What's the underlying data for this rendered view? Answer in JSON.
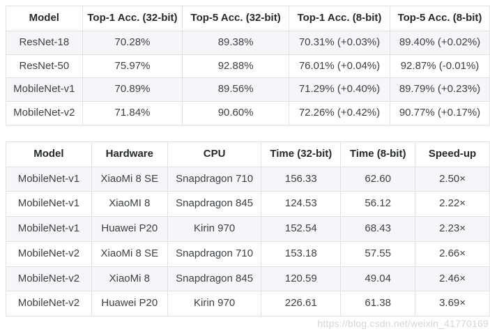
{
  "colors": {
    "stripe": "#f6f6f8",
    "border": "#dfe1e3",
    "header_text": "#26292b",
    "body_text": "#3d4144",
    "watermark_text": "#d6d6d6"
  },
  "accuracy_table": {
    "columns": [
      "Model",
      "Top-1 Acc. (32-bit)",
      "Top-5 Acc. (32-bit)",
      "Top-1 Acc. (8-bit)",
      "Top-5 Acc. (8-bit)"
    ],
    "rows": [
      [
        "ResNet-18",
        "70.28%",
        "89.38%",
        "70.31% (+0.03%)",
        "89.40% (+0.02%)"
      ],
      [
        "ResNet-50",
        "75.97%",
        "92.88%",
        "76.01% (+0.04%)",
        "92.87% (-0.01%)"
      ],
      [
        "MobileNet-v1",
        "70.89%",
        "89.56%",
        "71.29% (+0.40%)",
        "89.79% (+0.23%)"
      ],
      [
        "MobileNet-v2",
        "71.84%",
        "90.60%",
        "72.26% (+0.42%)",
        "90.77% (+0.17%)"
      ]
    ]
  },
  "latency_table": {
    "columns": [
      "Model",
      "Hardware",
      "CPU",
      "Time (32-bit)",
      "Time (8-bit)",
      "Speed-up"
    ],
    "rows": [
      [
        "MobileNet-v1",
        "XiaoMi 8 SE",
        "Snapdragon 710",
        "156.33",
        "62.60",
        "2.50×"
      ],
      [
        "MobileNet-v1",
        "XiaoMI 8",
        "Snapdragon 845",
        "124.53",
        "56.12",
        "2.22×"
      ],
      [
        "MobileNet-v1",
        "Huawei P20",
        "Kirin 970",
        "152.54",
        "68.43",
        "2.23×"
      ],
      [
        "MobileNet-v2",
        "XiaoMi 8 SE",
        "Snapdragon 710",
        "153.18",
        "57.55",
        "2.66×"
      ],
      [
        "MobileNet-v2",
        "XiaoMi 8",
        "Snapdragon 845",
        "120.59",
        "49.04",
        "2.46×"
      ],
      [
        "MobileNet-v2",
        "Huawei P20",
        "Kirin 970",
        "226.61",
        "61.38",
        "3.69×"
      ]
    ]
  },
  "watermark": "https://blog.csdn.net/weixin_41770169"
}
